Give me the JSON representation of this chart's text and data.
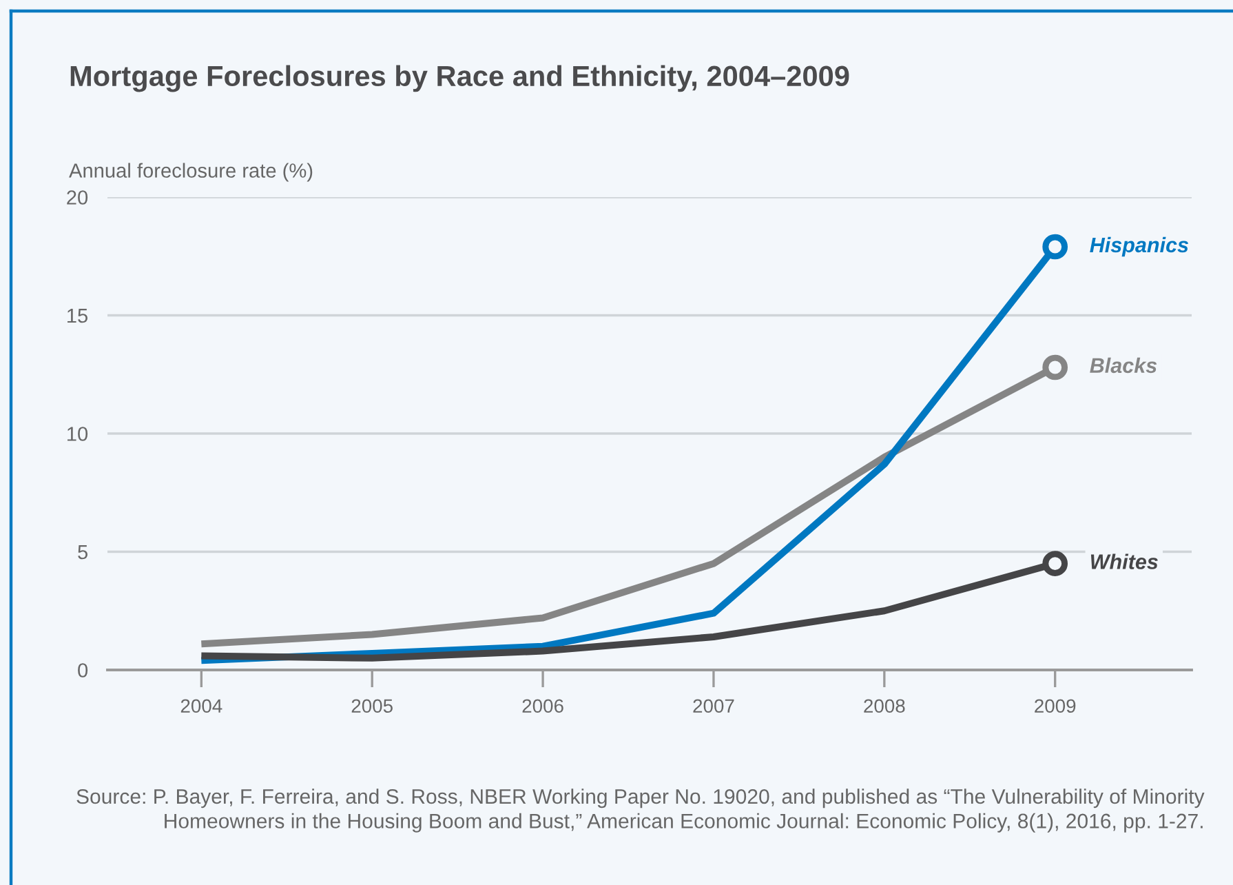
{
  "chart_data": {
    "type": "line",
    "title": "Mortgage Foreclosures by Race and Ethnicity, 2004–2009",
    "ylabel": "Annual foreclosure rate (%)",
    "x": [
      2004,
      2005,
      2006,
      2007,
      2008,
      2009
    ],
    "xlim": [
      2003.45,
      2009.8
    ],
    "xticks": [
      2004,
      2005,
      2006,
      2007,
      2008,
      2009
    ],
    "ylim": [
      0,
      20
    ],
    "yticks": [
      0,
      5,
      10,
      15,
      20
    ],
    "grid": "y",
    "series": [
      {
        "name": "Blacks",
        "color": "#858585",
        "values": [
          1.1,
          1.5,
          2.2,
          4.5,
          9.0,
          12.8
        ]
      },
      {
        "name": "Hispanics",
        "color": "#0078c1",
        "values": [
          0.4,
          0.7,
          1.0,
          2.4,
          8.7,
          17.9
        ]
      },
      {
        "name": "Whites",
        "color": "#454547",
        "values": [
          0.6,
          0.5,
          0.8,
          1.4,
          2.5,
          4.5
        ]
      }
    ],
    "annotations": [
      "Source: P. Bayer, F. Ferreira, and S. Ross, NBER Working Paper No. 19020, and published as “The Vulnerability of Minority Homeowners in the Housing Boom and Bust,” American Economic Journal: Economic Policy, 8(1), 2016, pp. 1-27."
    ]
  }
}
